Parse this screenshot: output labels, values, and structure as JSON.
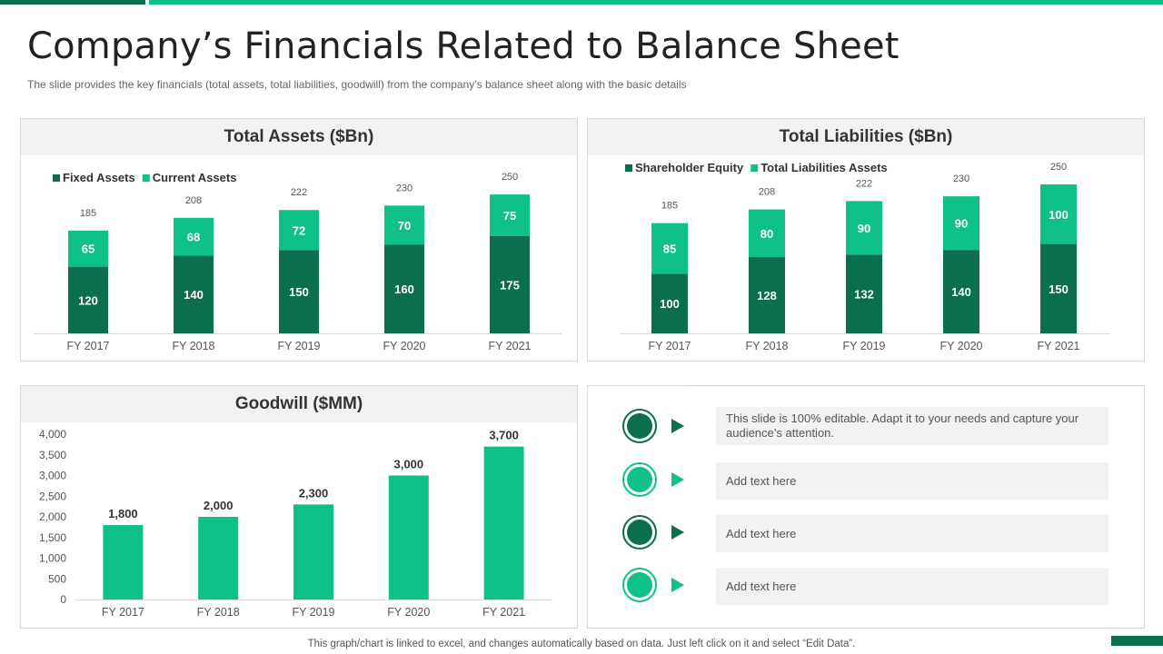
{
  "title": "Company’s Financials Related to Balance Sheet",
  "subtitle": "The slide provides  the key financials (total assets, total liabilities, goodwill) from the company’s balance sheet along with the basic details",
  "footer": "This graph/chart is linked to excel,  and changes automatically based on data. Just left click on it and select “Edit Data”.",
  "colors": {
    "dark": "#0b6e4f",
    "light": "#0fc088",
    "panel_head": "#f2f2f2"
  },
  "assets": {
    "title": "Total Assets ($Bn)",
    "chart_data": {
      "type": "bar",
      "stacked": true,
      "categories": [
        "FY 2017",
        "FY 2018",
        "FY 2019",
        "FY 2020",
        "FY 2021"
      ],
      "series": [
        {
          "name": "Fixed Assets",
          "values": [
            120,
            140,
            150,
            160,
            175
          ]
        },
        {
          "name": "Current Assets",
          "values": [
            65,
            68,
            72,
            70,
            75
          ]
        }
      ],
      "totals": [
        185,
        208,
        222,
        230,
        250
      ],
      "legend": "top-left"
    }
  },
  "liabilities": {
    "title": "Total Liabilities ($Bn)",
    "chart_data": {
      "type": "bar",
      "stacked": true,
      "categories": [
        "FY 2017",
        "FY 2018",
        "FY 2019",
        "FY 2020",
        "FY 2021"
      ],
      "series": [
        {
          "name": "Shareholder Equity",
          "values": [
            100,
            128,
            132,
            140,
            150
          ]
        },
        {
          "name": "Total Liabilities Assets",
          "values": [
            85,
            80,
            90,
            90,
            100
          ]
        }
      ],
      "totals": [
        185,
        208,
        222,
        230,
        250
      ],
      "legend": "top-left"
    }
  },
  "goodwill": {
    "title": "Goodwill ($MM)",
    "chart_data": {
      "type": "bar",
      "categories": [
        "FY 2017",
        "FY 2018",
        "FY 2019",
        "FY 2020",
        "FY 2021"
      ],
      "values": [
        1800,
        2000,
        2300,
        3000,
        3700
      ],
      "value_labels": [
        "1,800",
        "2,000",
        "2,300",
        "3,000",
        "3,700"
      ],
      "ylim": [
        0,
        4000
      ],
      "yticks": [
        0,
        500,
        1000,
        1500,
        2000,
        2500,
        3000,
        3500,
        4000
      ],
      "ytick_labels": [
        "0",
        "500",
        "1,000",
        "1,500",
        "2,000",
        "2,500",
        "3,000",
        "3,500",
        "4,000"
      ]
    }
  },
  "notes": [
    {
      "icon": "financial-report-icon",
      "text": "This slide is 100% editable. Adapt it to your needs and capture your audience’s attention."
    },
    {
      "icon": "bar-chart-icon",
      "text": "Add text here"
    },
    {
      "icon": "growth-chart-icon",
      "text": "Add text here"
    },
    {
      "icon": "money-growth-icon",
      "text": "Add text here"
    }
  ]
}
